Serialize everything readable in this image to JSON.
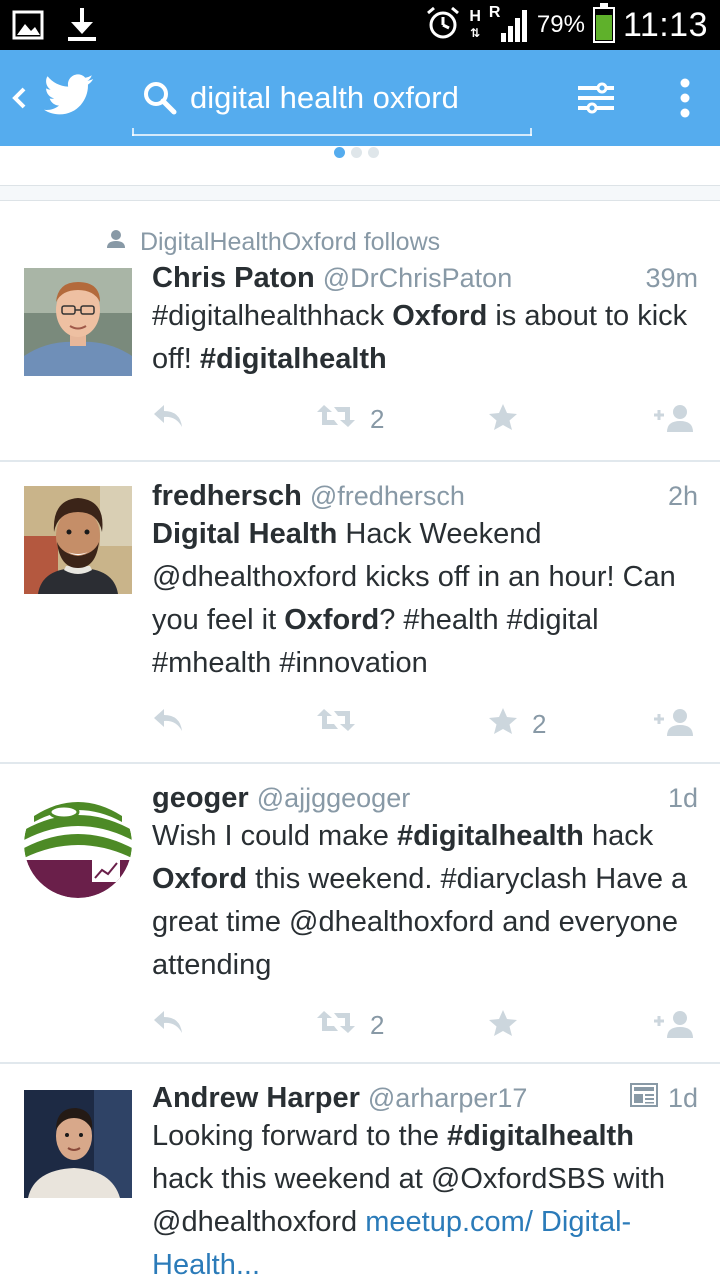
{
  "status_bar": {
    "network_h": "H",
    "network_r": "R",
    "battery": "79%",
    "battery_fill": 0.79,
    "time": "11:13"
  },
  "app_bar": {
    "search_query": "digital health oxford"
  },
  "colors": {
    "twitter_blue": "#55acee",
    "text": "#292f33",
    "secondary": "#8899a6",
    "link": "#2b7bb9"
  },
  "tweets": [
    {
      "context": "DigitalHealthOxford follows",
      "name": "Chris Paton",
      "handle": "@DrChrisPaton",
      "time": "39m",
      "retweets": "2",
      "favorites": ""
    },
    {
      "name": "fredhersch",
      "handle": "@fredhersch",
      "time": "2h",
      "retweets": "",
      "favorites": "2"
    },
    {
      "name": "geoger",
      "handle": "@ajjggeoger",
      "time": "1d",
      "retweets": "2",
      "favorites": ""
    },
    {
      "name": "Andrew Harper",
      "handle": "@arharper17",
      "time": "1d",
      "retweets": "",
      "favorites": ""
    }
  ],
  "tweet_text": {
    "t1": [
      {
        "t": "#digitalhealthhack ",
        "b": false
      },
      {
        "t": "Oxford",
        "b": true
      },
      {
        "t": " is about to kick off! ",
        "b": false
      },
      {
        "t": "#digitalhealth",
        "b": true
      }
    ],
    "t2": [
      {
        "t": "Digital Health",
        "b": true
      },
      {
        "t": " Hack Weekend @dhealthoxford kicks off in an hour! Can you feel it ",
        "b": false
      },
      {
        "t": "Oxford",
        "b": true
      },
      {
        "t": "? #health #digital #mhealth #innovation",
        "b": false
      }
    ],
    "t3": [
      {
        "t": "Wish I could make ",
        "b": false
      },
      {
        "t": "#digitalhealth",
        "b": true
      },
      {
        "t": " hack ",
        "b": false
      },
      {
        "t": "Oxford",
        "b": true
      },
      {
        "t": " this weekend. #diaryclash Have a great time @dhealthoxford and everyone attending",
        "b": false
      }
    ],
    "t4": [
      {
        "t": "Looking forward to the ",
        "b": false
      },
      {
        "t": "#digitalhealth",
        "b": true
      },
      {
        "t": " hack this weekend at @OxfordSBS with @dhealthoxford ",
        "b": false
      },
      {
        "t": "meetup.com/ Digital-Health...",
        "b": false,
        "link": true
      }
    ]
  }
}
